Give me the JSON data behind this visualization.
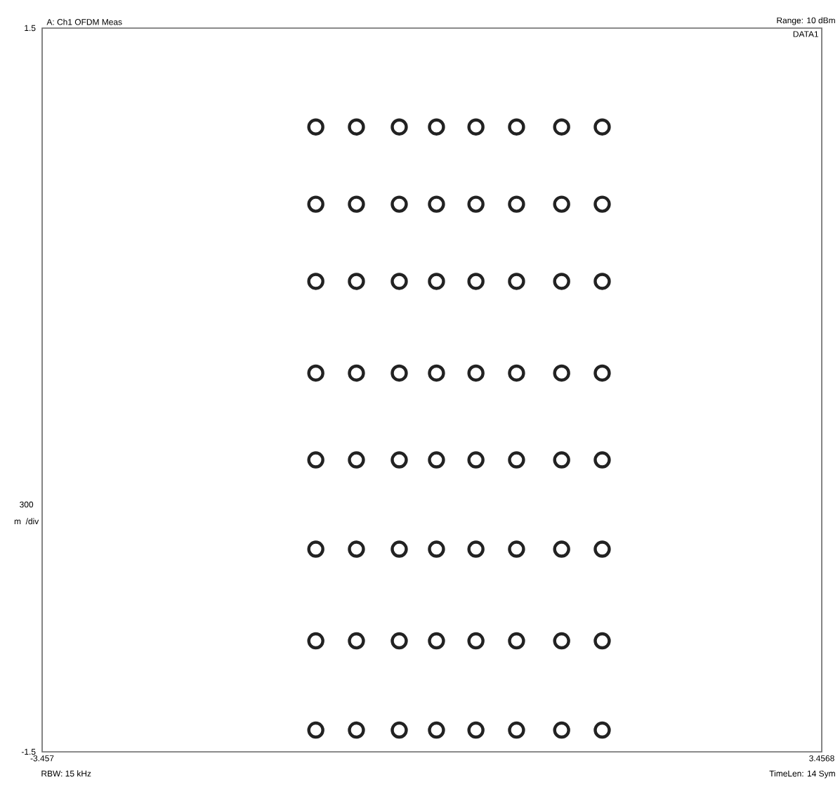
{
  "chart_data": {
    "type": "scatter",
    "title": "A: Ch1 OFDM Meas",
    "subtitle": "Range: 10 dBm",
    "ylabel": "300 m /div",
    "annotations": [
      "DATA1",
      "RBW: 15 kHz",
      "TimeLen: 14 Sym"
    ],
    "xlim": [
      -3.457,
      3.4568
    ],
    "ylim": [
      -1.5,
      1.5
    ],
    "xticks": [
      -3.457,
      3.4568
    ],
    "yticks": [
      -1.5,
      1.5
    ],
    "marker": "circle",
    "grid": false,
    "series": [
      {
        "color": "#222222",
        "x": [
          -1.03,
          -0.67,
          -0.29,
          0.04,
          0.39,
          0.75,
          1.15,
          1.51,
          -1.03,
          -0.67,
          -0.29,
          0.04,
          0.39,
          0.75,
          1.15,
          1.51,
          -1.03,
          -0.67,
          -0.29,
          0.04,
          0.39,
          0.75,
          1.15,
          1.51,
          -1.03,
          -0.67,
          -0.29,
          0.04,
          0.39,
          0.75,
          1.15,
          1.51,
          -1.03,
          -0.67,
          -0.29,
          0.04,
          0.39,
          0.75,
          1.15,
          1.51,
          -1.03,
          -0.67,
          -0.29,
          0.04,
          0.39,
          0.75,
          1.15,
          1.51,
          -1.03,
          -0.67,
          -0.29,
          0.04,
          0.39,
          0.75,
          1.15,
          1.51,
          -1.03,
          -0.67,
          -0.29,
          0.04,
          0.39,
          0.75,
          1.15,
          1.51
        ],
        "values": [
          1.09,
          1.09,
          1.09,
          1.09,
          1.09,
          1.09,
          1.09,
          1.09,
          0.77,
          0.77,
          0.77,
          0.77,
          0.77,
          0.77,
          0.77,
          0.77,
          0.45,
          0.45,
          0.45,
          0.45,
          0.45,
          0.45,
          0.45,
          0.45,
          0.07,
          0.07,
          0.07,
          0.07,
          0.07,
          0.07,
          0.07,
          0.07,
          -0.29,
          -0.29,
          -0.29,
          -0.29,
          -0.29,
          -0.29,
          -0.29,
          -0.29,
          -0.66,
          -0.66,
          -0.66,
          -0.66,
          -0.66,
          -0.66,
          -0.66,
          -0.66,
          -1.04,
          -1.04,
          -1.04,
          -1.04,
          -1.04,
          -1.04,
          -1.04,
          -1.04,
          -1.41,
          -1.41,
          -1.41,
          -1.41,
          -1.41,
          -1.41,
          -1.41,
          -1.41
        ]
      }
    ]
  }
}
